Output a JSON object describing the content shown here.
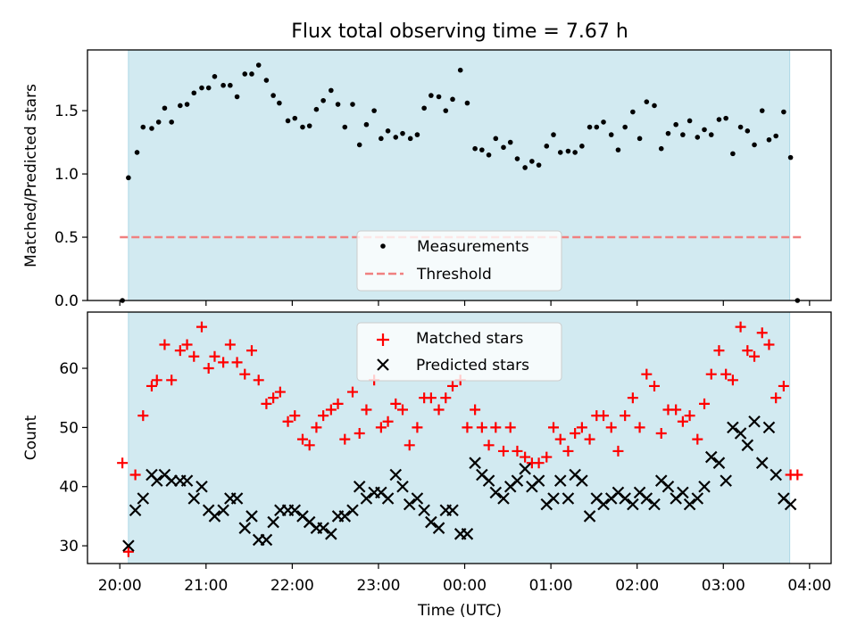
{
  "chart_data": {
    "type": "scatter",
    "title": "Flux total observing time = 7.67 h",
    "xlabel": "Time (UTC)",
    "x_ticks": [
      "20:00",
      "21:00",
      "22:00",
      "23:00",
      "00:00",
      "01:00",
      "02:00",
      "03:00",
      "04:00"
    ],
    "x_range_hours": [
      -0.375,
      8.25
    ],
    "shaded_interval_hours": [
      0.1,
      7.77
    ],
    "shade_color": "#add8e6",
    "top_panel": {
      "ylabel": "Matched/Predicted stars",
      "ylim": [
        0,
        1.98
      ],
      "yticks": [
        0.0,
        0.5,
        1.0,
        1.5
      ],
      "legend": {
        "placement": "lower-center",
        "entries": [
          "Measurements",
          "Threshold"
        ]
      },
      "threshold": {
        "name": "Threshold",
        "value": 0.5,
        "color": "#f08080",
        "style": "dashed"
      },
      "measurements": {
        "name": "Measurements",
        "color": "#000000",
        "points": [
          [
            0.03,
            0.0
          ],
          [
            0.1,
            0.97
          ],
          [
            0.2,
            1.17
          ],
          [
            0.27,
            1.37
          ],
          [
            0.37,
            1.36
          ],
          [
            0.45,
            1.41
          ],
          [
            0.52,
            1.52
          ],
          [
            0.6,
            1.41
          ],
          [
            0.7,
            1.54
          ],
          [
            0.78,
            1.55
          ],
          [
            0.86,
            1.64
          ],
          [
            0.95,
            1.68
          ],
          [
            1.03,
            1.68
          ],
          [
            1.1,
            1.77
          ],
          [
            1.2,
            1.7
          ],
          [
            1.28,
            1.7
          ],
          [
            1.36,
            1.61
          ],
          [
            1.45,
            1.79
          ],
          [
            1.53,
            1.79
          ],
          [
            1.61,
            1.86
          ],
          [
            1.7,
            1.74
          ],
          [
            1.78,
            1.62
          ],
          [
            1.85,
            1.56
          ],
          [
            1.95,
            1.42
          ],
          [
            2.03,
            1.44
          ],
          [
            2.12,
            1.37
          ],
          [
            2.2,
            1.38
          ],
          [
            2.28,
            1.51
          ],
          [
            2.36,
            1.58
          ],
          [
            2.45,
            1.66
          ],
          [
            2.53,
            1.55
          ],
          [
            2.61,
            1.37
          ],
          [
            2.7,
            1.55
          ],
          [
            2.78,
            1.23
          ],
          [
            2.86,
            1.39
          ],
          [
            2.95,
            1.5
          ],
          [
            3.03,
            1.28
          ],
          [
            3.11,
            1.34
          ],
          [
            3.2,
            1.29
          ],
          [
            3.28,
            1.32
          ],
          [
            3.37,
            1.28
          ],
          [
            3.45,
            1.31
          ],
          [
            3.53,
            1.52
          ],
          [
            3.61,
            1.62
          ],
          [
            3.7,
            1.61
          ],
          [
            3.78,
            1.5
          ],
          [
            3.86,
            1.59
          ],
          [
            3.95,
            1.82
          ],
          [
            4.03,
            1.56
          ],
          [
            4.12,
            1.2
          ],
          [
            4.2,
            1.19
          ],
          [
            4.28,
            1.15
          ],
          [
            4.36,
            1.28
          ],
          [
            4.45,
            1.21
          ],
          [
            4.53,
            1.25
          ],
          [
            4.61,
            1.12
          ],
          [
            4.7,
            1.05
          ],
          [
            4.78,
            1.1
          ],
          [
            4.86,
            1.07
          ],
          [
            4.95,
            1.22
          ],
          [
            5.03,
            1.31
          ],
          [
            5.11,
            1.17
          ],
          [
            5.2,
            1.18
          ],
          [
            5.28,
            1.17
          ],
          [
            5.36,
            1.22
          ],
          [
            5.45,
            1.37
          ],
          [
            5.53,
            1.37
          ],
          [
            5.61,
            1.41
          ],
          [
            5.7,
            1.31
          ],
          [
            5.78,
            1.19
          ],
          [
            5.86,
            1.37
          ],
          [
            5.95,
            1.49
          ],
          [
            6.03,
            1.28
          ],
          [
            6.11,
            1.57
          ],
          [
            6.2,
            1.54
          ],
          [
            6.28,
            1.2
          ],
          [
            6.36,
            1.32
          ],
          [
            6.45,
            1.39
          ],
          [
            6.53,
            1.31
          ],
          [
            6.61,
            1.42
          ],
          [
            6.7,
            1.29
          ],
          [
            6.78,
            1.35
          ],
          [
            6.86,
            1.31
          ],
          [
            6.95,
            1.43
          ],
          [
            7.03,
            1.44
          ],
          [
            7.11,
            1.16
          ],
          [
            7.2,
            1.37
          ],
          [
            7.28,
            1.34
          ],
          [
            7.36,
            1.23
          ],
          [
            7.45,
            1.5
          ],
          [
            7.53,
            1.27
          ],
          [
            7.61,
            1.3
          ],
          [
            7.7,
            1.49
          ],
          [
            7.78,
            1.13
          ],
          [
            7.86,
            0.0
          ]
        ]
      }
    },
    "bottom_panel": {
      "ylabel": "Count",
      "ylim": [
        27,
        69.5
      ],
      "yticks": [
        30,
        40,
        50,
        60
      ],
      "legend": {
        "placement": "upper-center",
        "entries": [
          "Matched stars",
          "Predicted stars"
        ]
      },
      "series": [
        {
          "name": "Matched stars",
          "marker": "+",
          "color": "#ff0000",
          "points": [
            [
              0.03,
              44
            ],
            [
              0.1,
              29
            ],
            [
              0.18,
              42
            ],
            [
              0.27,
              52
            ],
            [
              0.37,
              57
            ],
            [
              0.43,
              58
            ],
            [
              0.52,
              64
            ],
            [
              0.6,
              58
            ],
            [
              0.7,
              63
            ],
            [
              0.78,
              64
            ],
            [
              0.86,
              62
            ],
            [
              0.95,
              67
            ],
            [
              1.03,
              60
            ],
            [
              1.1,
              62
            ],
            [
              1.2,
              61
            ],
            [
              1.28,
              64
            ],
            [
              1.36,
              61
            ],
            [
              1.45,
              59
            ],
            [
              1.53,
              63
            ],
            [
              1.61,
              58
            ],
            [
              1.7,
              54
            ],
            [
              1.78,
              55
            ],
            [
              1.86,
              56
            ],
            [
              1.95,
              51
            ],
            [
              2.03,
              52
            ],
            [
              2.12,
              48
            ],
            [
              2.2,
              47
            ],
            [
              2.28,
              50
            ],
            [
              2.36,
              52
            ],
            [
              2.45,
              53
            ],
            [
              2.53,
              54
            ],
            [
              2.61,
              48
            ],
            [
              2.7,
              56
            ],
            [
              2.78,
              49
            ],
            [
              2.86,
              53
            ],
            [
              2.95,
              58
            ],
            [
              3.03,
              50
            ],
            [
              3.11,
              51
            ],
            [
              3.2,
              54
            ],
            [
              3.28,
              53
            ],
            [
              3.36,
              47
            ],
            [
              3.45,
              50
            ],
            [
              3.53,
              55
            ],
            [
              3.61,
              55
            ],
            [
              3.7,
              53
            ],
            [
              3.78,
              55
            ],
            [
              3.86,
              57
            ],
            [
              3.95,
              58
            ],
            [
              4.03,
              50
            ],
            [
              4.12,
              53
            ],
            [
              4.2,
              50
            ],
            [
              4.28,
              47
            ],
            [
              4.36,
              50
            ],
            [
              4.45,
              46
            ],
            [
              4.53,
              50
            ],
            [
              4.61,
              46
            ],
            [
              4.7,
              45
            ],
            [
              4.78,
              44
            ],
            [
              4.86,
              44
            ],
            [
              4.95,
              45
            ],
            [
              5.03,
              50
            ],
            [
              5.11,
              48
            ],
            [
              5.2,
              46
            ],
            [
              5.28,
              49
            ],
            [
              5.36,
              50
            ],
            [
              5.45,
              48
            ],
            [
              5.53,
              52
            ],
            [
              5.61,
              52
            ],
            [
              5.7,
              50
            ],
            [
              5.78,
              46
            ],
            [
              5.86,
              52
            ],
            [
              5.95,
              55
            ],
            [
              6.03,
              50
            ],
            [
              6.11,
              59
            ],
            [
              6.2,
              57
            ],
            [
              6.28,
              49
            ],
            [
              6.36,
              53
            ],
            [
              6.45,
              53
            ],
            [
              6.53,
              51
            ],
            [
              6.61,
              52
            ],
            [
              6.7,
              48
            ],
            [
              6.78,
              54
            ],
            [
              6.86,
              59
            ],
            [
              6.95,
              63
            ],
            [
              7.03,
              59
            ],
            [
              7.11,
              58
            ],
            [
              7.2,
              67
            ],
            [
              7.28,
              63
            ],
            [
              7.36,
              62
            ],
            [
              7.45,
              66
            ],
            [
              7.53,
              64
            ],
            [
              7.61,
              55
            ],
            [
              7.7,
              57
            ],
            [
              7.78,
              42
            ],
            [
              7.86,
              42
            ]
          ]
        },
        {
          "name": "Predicted stars",
          "marker": "x",
          "color": "#000000",
          "points": [
            [
              0.1,
              30
            ],
            [
              0.18,
              36
            ],
            [
              0.27,
              38
            ],
            [
              0.37,
              42
            ],
            [
              0.43,
              41
            ],
            [
              0.52,
              42
            ],
            [
              0.6,
              41
            ],
            [
              0.7,
              41
            ],
            [
              0.78,
              41
            ],
            [
              0.86,
              38
            ],
            [
              0.95,
              40
            ],
            [
              1.03,
              36
            ],
            [
              1.1,
              35
            ],
            [
              1.2,
              36
            ],
            [
              1.28,
              38
            ],
            [
              1.36,
              38
            ],
            [
              1.45,
              33
            ],
            [
              1.53,
              35
            ],
            [
              1.61,
              31
            ],
            [
              1.7,
              31
            ],
            [
              1.78,
              34
            ],
            [
              1.86,
              36
            ],
            [
              1.95,
              36
            ],
            [
              2.03,
              36
            ],
            [
              2.12,
              35
            ],
            [
              2.2,
              34
            ],
            [
              2.28,
              33
            ],
            [
              2.36,
              33
            ],
            [
              2.45,
              32
            ],
            [
              2.53,
              35
            ],
            [
              2.61,
              35
            ],
            [
              2.7,
              36
            ],
            [
              2.78,
              40
            ],
            [
              2.86,
              38
            ],
            [
              2.95,
              39
            ],
            [
              3.03,
              39
            ],
            [
              3.11,
              38
            ],
            [
              3.2,
              42
            ],
            [
              3.28,
              40
            ],
            [
              3.36,
              37
            ],
            [
              3.45,
              38
            ],
            [
              3.53,
              36
            ],
            [
              3.61,
              34
            ],
            [
              3.7,
              33
            ],
            [
              3.78,
              36
            ],
            [
              3.86,
              36
            ],
            [
              3.95,
              32
            ],
            [
              4.03,
              32
            ],
            [
              4.12,
              44
            ],
            [
              4.2,
              42
            ],
            [
              4.28,
              41
            ],
            [
              4.36,
              39
            ],
            [
              4.45,
              38
            ],
            [
              4.53,
              40
            ],
            [
              4.61,
              41
            ],
            [
              4.7,
              43
            ],
            [
              4.78,
              40
            ],
            [
              4.86,
              41
            ],
            [
              4.95,
              37
            ],
            [
              5.03,
              38
            ],
            [
              5.11,
              41
            ],
            [
              5.2,
              38
            ],
            [
              5.28,
              42
            ],
            [
              5.36,
              41
            ],
            [
              5.45,
              35
            ],
            [
              5.53,
              38
            ],
            [
              5.61,
              37
            ],
            [
              5.7,
              38
            ],
            [
              5.78,
              39
            ],
            [
              5.86,
              38
            ],
            [
              5.95,
              37
            ],
            [
              6.03,
              39
            ],
            [
              6.11,
              38
            ],
            [
              6.2,
              37
            ],
            [
              6.28,
              41
            ],
            [
              6.36,
              40
            ],
            [
              6.45,
              38
            ],
            [
              6.53,
              39
            ],
            [
              6.61,
              37
            ],
            [
              6.7,
              38
            ],
            [
              6.78,
              40
            ],
            [
              6.86,
              45
            ],
            [
              6.95,
              44
            ],
            [
              7.03,
              41
            ],
            [
              7.11,
              50
            ],
            [
              7.2,
              49
            ],
            [
              7.28,
              47
            ],
            [
              7.36,
              51
            ],
            [
              7.45,
              44
            ],
            [
              7.53,
              50
            ],
            [
              7.61,
              42
            ],
            [
              7.7,
              38
            ],
            [
              7.78,
              37
            ]
          ]
        }
      ]
    }
  }
}
